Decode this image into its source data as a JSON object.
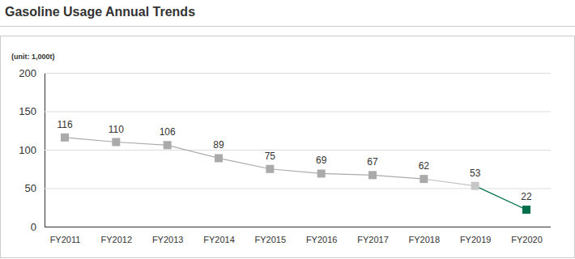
{
  "chart_data": {
    "type": "line",
    "title": "Gasoline Usage Annual Trends",
    "ylabel": "(unit: 1,000t)",
    "categories": [
      "FY2011",
      "FY2012",
      "FY2013",
      "FY2014",
      "FY2015",
      "FY2016",
      "FY2017",
      "FY2018",
      "FY2019",
      "FY2020"
    ],
    "values": [
      116,
      110,
      106,
      89,
      75,
      69,
      67,
      62,
      53,
      22
    ],
    "colors": [
      "#aaaaaa",
      "#aaaaaa",
      "#aaaaaa",
      "#aaaaaa",
      "#aaaaaa",
      "#aaaaaa",
      "#aaaaaa",
      "#aaaaaa",
      "#c6c6c6",
      "#00704a"
    ],
    "marker": "square",
    "ylim": [
      0,
      200
    ],
    "yticks": [
      0,
      50,
      100,
      150,
      200
    ],
    "grid": true,
    "data_labels": true
  }
}
